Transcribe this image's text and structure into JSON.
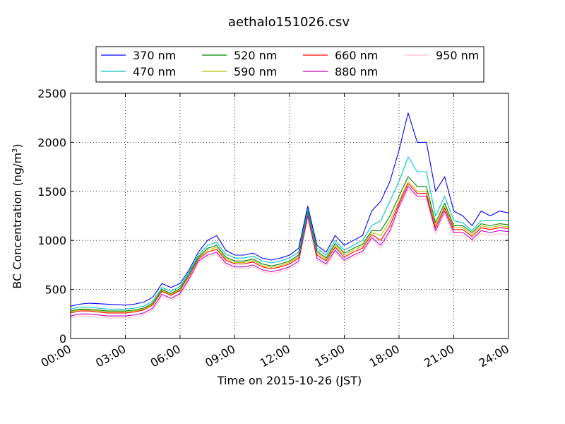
{
  "chart_data": {
    "type": "line",
    "title": "aethalo151026.csv",
    "xlabel": "Time on 2015-10-26 (JST)",
    "ylabel_main": "BC Concentration (ng/m",
    "ylabel_sup": "3",
    "ylabel_close": ")",
    "xlim_hours": [
      0,
      24
    ],
    "ylim": [
      0,
      2500
    ],
    "x_ticks": [
      0,
      3,
      6,
      9,
      12,
      15,
      18,
      21,
      24
    ],
    "x_tick_labels": [
      "00:00",
      "03:00",
      "06:00",
      "09:00",
      "12:00",
      "15:00",
      "18:00",
      "21:00",
      "24:00"
    ],
    "y_ticks": [
      0,
      500,
      1000,
      1500,
      2000,
      2500
    ],
    "y_tick_labels": [
      "0",
      "500",
      "1000",
      "1500",
      "2000",
      "2500"
    ],
    "grid": true,
    "legend_position": "top",
    "x": [
      0,
      0.5,
      1,
      1.5,
      2,
      2.5,
      3,
      3.5,
      4,
      4.5,
      5,
      5.5,
      6,
      6.5,
      7,
      7.5,
      8,
      8.5,
      9,
      9.5,
      10,
      10.5,
      11,
      11.5,
      12,
      12.5,
      13,
      13.5,
      14,
      14.5,
      15,
      15.5,
      16,
      16.5,
      17,
      17.5,
      18,
      18.5,
      19,
      19.5,
      20,
      20.5,
      21,
      21.5,
      22,
      22.5,
      23,
      23.5,
      24
    ],
    "series": [
      {
        "name": "370 nm",
        "color": "#0000ff",
        "values": [
          330,
          350,
          360,
          355,
          350,
          345,
          340,
          350,
          370,
          420,
          560,
          520,
          560,
          700,
          880,
          1000,
          1050,
          900,
          850,
          850,
          870,
          820,
          800,
          820,
          850,
          920,
          1350,
          950,
          880,
          1050,
          950,
          1000,
          1050,
          1300,
          1400,
          1600,
          1920,
          2300,
          2000,
          2000,
          1500,
          1650,
          1300,
          1250,
          1150,
          1300,
          1250,
          1300,
          1280
        ]
      },
      {
        "name": "470 nm",
        "color": "#00bfbf",
        "values": [
          300,
          320,
          320,
          310,
          300,
          300,
          300,
          310,
          330,
          380,
          520,
          480,
          530,
          680,
          850,
          950,
          980,
          860,
          820,
          820,
          840,
          790,
          770,
          790,
          820,
          880,
          1320,
          920,
          850,
          1000,
          900,
          950,
          1000,
          1150,
          1200,
          1400,
          1600,
          1850,
          1700,
          1700,
          1250,
          1450,
          1200,
          1180,
          1100,
          1200,
          1200,
          1200,
          1200
        ]
      },
      {
        "name": "520 nm",
        "color": "#008000",
        "values": [
          280,
          300,
          300,
          290,
          280,
          280,
          280,
          290,
          310,
          360,
          500,
          460,
          510,
          660,
          830,
          920,
          950,
          830,
          790,
          790,
          810,
          760,
          740,
          760,
          790,
          850,
          1300,
          890,
          820,
          970,
          870,
          920,
          960,
          1100,
          1100,
          1250,
          1450,
          1650,
          1550,
          1550,
          1180,
          1380,
          1150,
          1150,
          1080,
          1170,
          1150,
          1170,
          1160
        ]
      },
      {
        "name": "590 nm",
        "color": "#bfbf00",
        "values": [
          270,
          290,
          290,
          280,
          270,
          270,
          270,
          280,
          300,
          350,
          490,
          450,
          500,
          650,
          820,
          900,
          930,
          815,
          775,
          775,
          795,
          745,
          725,
          745,
          775,
          835,
          1290,
          870,
          805,
          950,
          850,
          900,
          940,
          1080,
          1050,
          1200,
          1400,
          1600,
          1500,
          1500,
          1150,
          1350,
          1130,
          1130,
          1060,
          1150,
          1130,
          1150,
          1140
        ]
      },
      {
        "name": "660 nm",
        "color": "#ff0000",
        "values": [
          260,
          280,
          280,
          270,
          260,
          260,
          260,
          270,
          290,
          340,
          480,
          440,
          490,
          640,
          810,
          880,
          910,
          800,
          760,
          760,
          780,
          730,
          710,
          730,
          760,
          820,
          1280,
          850,
          790,
          930,
          830,
          880,
          920,
          1060,
          1000,
          1150,
          1380,
          1580,
          1480,
          1480,
          1130,
          1330,
          1110,
          1110,
          1040,
          1130,
          1110,
          1130,
          1120
        ]
      },
      {
        "name": "880 nm",
        "color": "#bf00bf",
        "values": [
          230,
          250,
          250,
          240,
          230,
          230,
          230,
          240,
          260,
          310,
          450,
          410,
          460,
          610,
          790,
          850,
          880,
          770,
          730,
          730,
          750,
          700,
          680,
          700,
          730,
          790,
          1250,
          820,
          760,
          900,
          800,
          850,
          890,
          1030,
          950,
          1100,
          1350,
          1550,
          1450,
          1450,
          1100,
          1300,
          1080,
          1080,
          1010,
          1100,
          1080,
          1100,
          1090
        ]
      },
      {
        "name": "950 nm",
        "color": "#ffc0cb",
        "values": [
          210,
          230,
          230,
          220,
          210,
          210,
          210,
          220,
          240,
          290,
          430,
          390,
          440,
          590,
          770,
          830,
          860,
          750,
          710,
          710,
          730,
          680,
          660,
          680,
          710,
          770,
          1230,
          800,
          740,
          880,
          780,
          830,
          870,
          1010,
          920,
          1070,
          1320,
          1520,
          1420,
          1420,
          1070,
          1270,
          1050,
          1050,
          980,
          1070,
          1050,
          1070,
          1060
        ]
      }
    ]
  }
}
